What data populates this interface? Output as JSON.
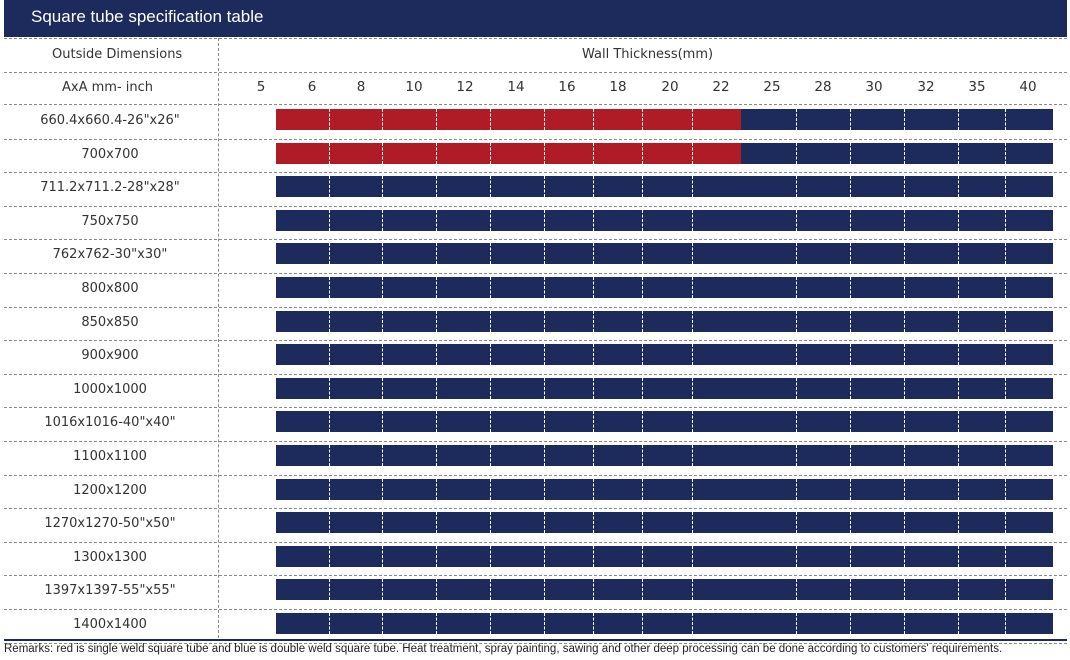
{
  "title": "Square tube specification table",
  "header": {
    "outside_dimensions": "Outside Dimensions",
    "wall_thickness": "Wall Thickness(mm)",
    "size_units": "AxA mm- inch"
  },
  "thickness_ticks": [
    "5",
    "6",
    "8",
    "10",
    "12",
    "14",
    "16",
    "18",
    "20",
    "22",
    "25",
    "28",
    "30",
    "32",
    "35",
    "40"
  ],
  "legend_colors": {
    "single_weld": "#b01c26",
    "double_weld": "#1d2a5c"
  },
  "rows": [
    {
      "label": "660.4x660.4-26\"x26\"",
      "single_weld_to": "22"
    },
    {
      "label": "700x700",
      "single_weld_to": "22"
    },
    {
      "label": "711.2x711.2-28\"x28\"",
      "single_weld_to": ""
    },
    {
      "label": "750x750",
      "single_weld_to": ""
    },
    {
      "label": "762x762-30\"x30\"",
      "single_weld_to": ""
    },
    {
      "label": "800x800",
      "single_weld_to": ""
    },
    {
      "label": "850x850",
      "single_weld_to": ""
    },
    {
      "label": "900x900",
      "single_weld_to": ""
    },
    {
      "label": "1000x1000",
      "single_weld_to": ""
    },
    {
      "label": "1016x1016-40\"x40\"",
      "single_weld_to": ""
    },
    {
      "label": "1100x1100",
      "single_weld_to": ""
    },
    {
      "label": "1200x1200",
      "single_weld_to": ""
    },
    {
      "label": "1270x1270-50\"x50\"",
      "single_weld_to": ""
    },
    {
      "label": "1300x1300",
      "single_weld_to": ""
    },
    {
      "label": "1397x1397-55\"x55\"",
      "single_weld_to": ""
    },
    {
      "label": "1400x1400",
      "single_weld_to": ""
    }
  ],
  "remarks": "Remarks: red is single weld square tube and blue is double weld square tube. Heat treatment, spray painting, sawing and other deep processing can be done according to customers' requirements."
}
